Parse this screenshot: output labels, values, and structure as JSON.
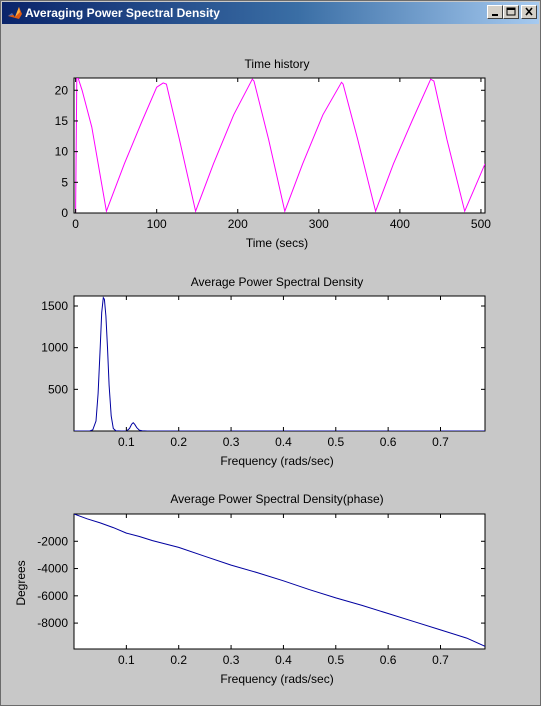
{
  "window": {
    "title": "Averaging Power Spectral Density",
    "icon": "matlab-logo-icon",
    "buttons": [
      "minimize",
      "maximize",
      "close"
    ]
  },
  "colors": {
    "background": "#c8c8c8",
    "titlebar": "#0a246a",
    "time_series": "#ff00ff",
    "psd_series": "#0000a0"
  },
  "chart_data": [
    {
      "type": "line",
      "title": "Time history",
      "xlabel": "Time (secs)",
      "ylabel": "",
      "xlim": [
        -2,
        505
      ],
      "ylim": [
        0,
        22
      ],
      "xticks": [
        0,
        100,
        200,
        300,
        400,
        500
      ],
      "yticks": [
        0,
        5,
        10,
        15,
        20
      ],
      "grid": false,
      "series": [
        {
          "color": "#ff00ff",
          "x": [
            0,
            1.5,
            3,
            8,
            20,
            38,
            60,
            82,
            100,
            108,
            112,
            128,
            148,
            170,
            195,
            218,
            220,
            238,
            258,
            280,
            305,
            328,
            330,
            348,
            370,
            392,
            415,
            438,
            442,
            458,
            480,
            505
          ],
          "y": [
            0,
            22,
            22,
            20,
            14,
            0.3,
            8,
            15,
            20.5,
            21.2,
            21,
            12,
            0.3,
            8,
            16,
            21.8,
            21.5,
            12,
            0.3,
            8,
            16,
            21.3,
            21,
            12,
            0.3,
            8,
            15,
            21.8,
            21.5,
            12,
            0.3,
            8
          ]
        }
      ]
    },
    {
      "type": "line",
      "title": "Average Power Spectral Density",
      "xlabel": "Frequency (rads/sec)",
      "ylabel": "",
      "xlim": [
        0,
        0.785
      ],
      "ylim": [
        0,
        1620
      ],
      "xticks": [
        0.1,
        0.2,
        0.3,
        0.4,
        0.5,
        0.6,
        0.7
      ],
      "yticks": [
        500,
        1000,
        1500
      ],
      "grid": false,
      "series": [
        {
          "color": "#0000a0",
          "x": [
            0,
            0.03,
            0.036,
            0.042,
            0.046,
            0.05,
            0.053,
            0.056,
            0.058,
            0.061,
            0.064,
            0.067,
            0.071,
            0.075,
            0.08,
            0.09,
            0.1,
            0.106,
            0.11,
            0.113,
            0.116,
            0.12,
            0.125,
            0.13,
            0.14,
            0.2,
            0.785
          ],
          "y": [
            0,
            0,
            15,
            120,
            450,
            1000,
            1420,
            1600,
            1580,
            1380,
            1000,
            550,
            180,
            30,
            2,
            0,
            0,
            30,
            80,
            100,
            80,
            40,
            10,
            2,
            0,
            0,
            0
          ]
        }
      ]
    },
    {
      "type": "line",
      "title": "Average Power Spectral Density(phase)",
      "xlabel": "Frequency (rads/sec)",
      "ylabel": "Degrees",
      "xlim": [
        0,
        0.785
      ],
      "ylim": [
        -9900,
        0
      ],
      "xticks": [
        0.1,
        0.2,
        0.3,
        0.4,
        0.5,
        0.6,
        0.7
      ],
      "yticks": [
        -8000,
        -6000,
        -4000,
        -2000
      ],
      "grid": false,
      "series": [
        {
          "color": "#0000a0",
          "x": [
            0,
            0.025,
            0.05,
            0.075,
            0.1,
            0.125,
            0.15,
            0.175,
            0.2,
            0.25,
            0.3,
            0.35,
            0.4,
            0.45,
            0.5,
            0.55,
            0.6,
            0.65,
            0.7,
            0.75,
            0.785
          ],
          "y": [
            0,
            -350,
            -650,
            -1000,
            -1400,
            -1650,
            -1950,
            -2200,
            -2450,
            -3100,
            -3750,
            -4300,
            -4900,
            -5550,
            -6150,
            -6700,
            -7300,
            -7900,
            -8500,
            -9100,
            -9700
          ]
        }
      ]
    }
  ]
}
